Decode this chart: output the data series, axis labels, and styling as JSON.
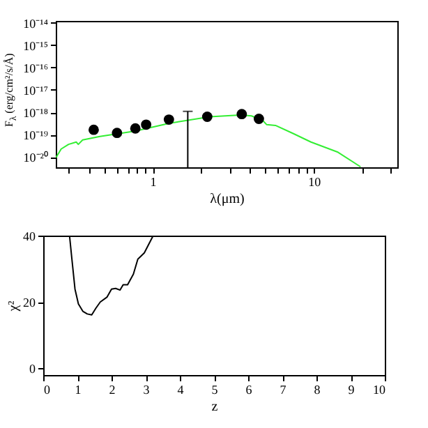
{
  "chart_data": [
    {
      "type": "scatter",
      "xlabel": "λ(μm)",
      "ylabel": "F$_{λ}$ (erg/cm²/s/Å)",
      "log": "xy",
      "xlim": [
        0.25,
        33
      ],
      "ylim": [
        3.5e-21,
        1.2e-14
      ],
      "xticks": [
        {
          "value": 0.3,
          "label": null
        },
        {
          "value": 0.4,
          "label": null
        },
        {
          "value": 0.5,
          "label": null
        },
        {
          "value": 0.6,
          "label": null
        },
        {
          "value": 0.7,
          "label": null
        },
        {
          "value": 0.8,
          "label": null
        },
        {
          "value": 0.9,
          "label": null
        },
        1,
        {
          "value": 2,
          "label": null
        },
        {
          "value": 3,
          "label": null
        },
        {
          "value": 4,
          "label": null
        },
        {
          "value": 5,
          "label": null
        },
        {
          "value": 6,
          "label": null
        },
        {
          "value": 7,
          "label": null
        },
        {
          "value": 8,
          "label": null
        },
        {
          "value": 9,
          "label": null
        },
        10,
        {
          "value": 20,
          "label": null
        },
        {
          "value": 30,
          "label": null
        }
      ],
      "yticks": [
        {
          "value": 1e-20,
          "label": "10⁻²⁰"
        },
        {
          "value": 1e-19,
          "label": "10⁻¹⁹"
        },
        {
          "value": 1e-18,
          "label": "10⁻¹⁸"
        },
        {
          "value": 1e-17,
          "label": "10⁻¹⁷"
        },
        {
          "value": 1e-16,
          "label": "10⁻¹⁶"
        },
        {
          "value": 1e-15,
          "label": "10⁻¹⁵"
        },
        {
          "value": 1e-14,
          "label": "10⁻¹⁴"
        }
      ],
      "series": [
        {
          "type": "line",
          "color": "#33ee33",
          "marker": "none",
          "x": [
            0.251,
            0.27,
            0.3,
            0.335,
            0.345,
            0.367,
            0.47,
            0.78,
            1.26,
            2.26,
            3.5,
            4.1,
            4.79,
            5.1,
            5.78,
            7.4,
            9.6,
            14.0,
            19.5
          ],
          "values": [
            9.5e-21,
            2.3e-20,
            3.7e-20,
            4.7e-20,
            3.7e-20,
            5.8e-20,
            8.3e-20,
            1.45e-19,
            3.2e-19,
            6.3e-19,
            7.6e-19,
            6.9e-19,
            4.5e-19,
            2.8e-19,
            2.6e-19,
            1.15e-19,
            4.7e-20,
            1.7e-20,
            3.7e-21
          ]
        },
        {
          "type": "scatter",
          "color": "#000000",
          "marker": "circle",
          "x": [
            0.43,
            0.6,
            0.78,
            0.91,
            1.26,
            2.18,
            3.57,
            4.56
          ],
          "values": [
            1.66e-19,
            1.2e-19,
            1.9e-19,
            2.8e-19,
            4.7e-19,
            6.3e-19,
            8.3e-19,
            5.1e-19
          ]
        },
        {
          "type": "line",
          "color": "#000000",
          "marker": "none",
          "x": [
            1.65,
            1.65
          ],
          "values": [
            3.5e-21,
            1.1e-18
          ]
        }
      ]
    },
    {
      "type": "line",
      "xlabel": "z",
      "ylabel": "χ²",
      "color": "#000000",
      "line_style": "solid",
      "xlim": [
        0,
        10
      ],
      "ylim": [
        -2,
        40
      ],
      "xticks": [
        0,
        1,
        2,
        3,
        4,
        5,
        6,
        7,
        8,
        9,
        10
      ],
      "yticks": [
        0,
        20,
        40
      ],
      "x": [
        0.77,
        0.84,
        0.93,
        1.03,
        1.16,
        1.29,
        1.42,
        1.54,
        1.67,
        1.87,
        2.0,
        2.12,
        2.25,
        2.34,
        2.47,
        2.64,
        2.77,
        2.96,
        3.22
      ],
      "values": [
        40,
        32.9,
        23.9,
        19.4,
        17.2,
        16.4,
        16.1,
        18.1,
        20,
        21.5,
        23.9,
        24.1,
        23.6,
        25.2,
        25.2,
        28.4,
        32.9,
        34.8,
        40
      ]
    }
  ]
}
